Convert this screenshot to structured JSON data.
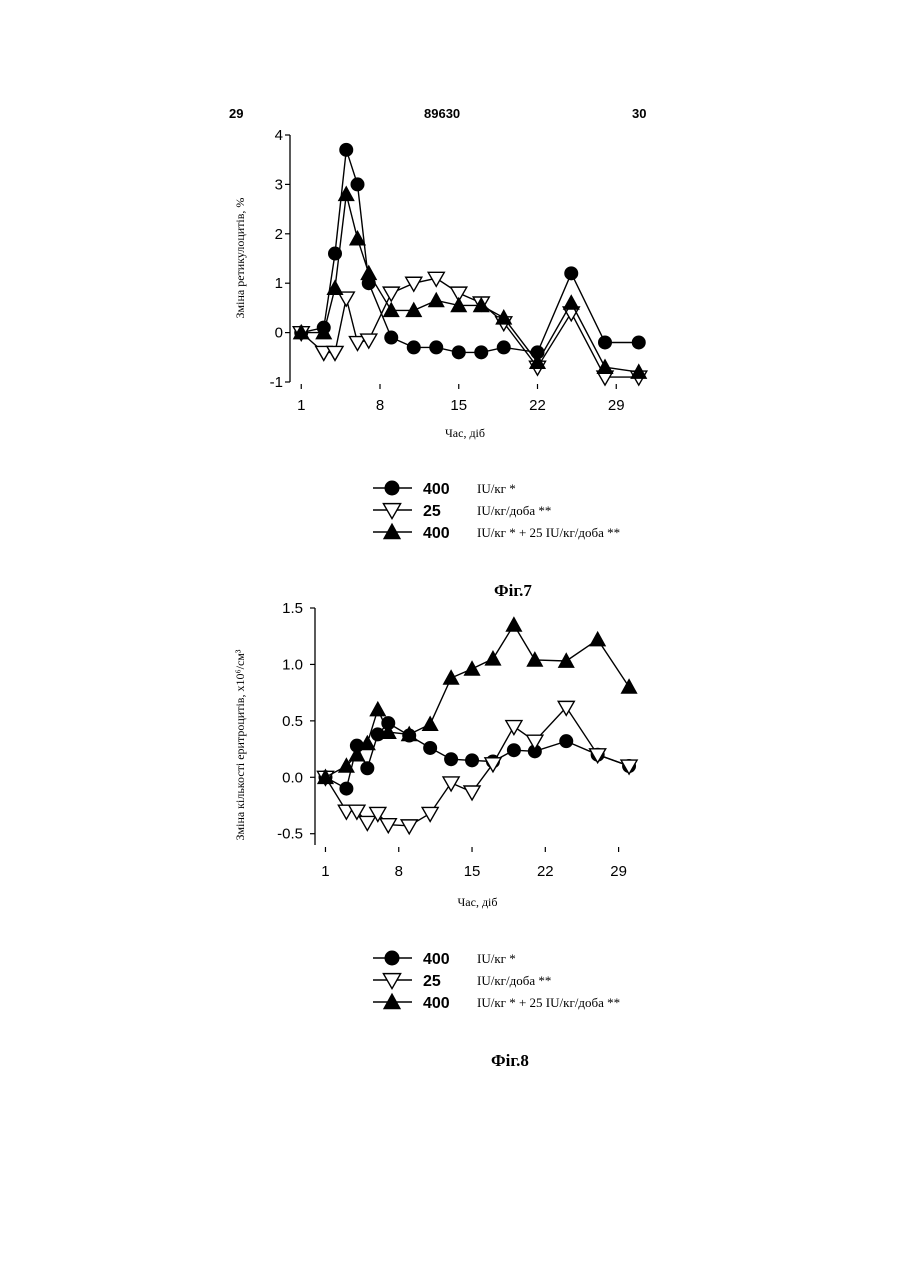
{
  "header": {
    "left": "29",
    "center": "89630",
    "right": "30"
  },
  "legend_rows": [
    {
      "marker": "circle",
      "number": "400",
      "text": "IU/кг *"
    },
    {
      "marker": "triangle-down-open",
      "number": "25",
      "text": "IU/кг/доба **"
    },
    {
      "marker": "triangle-up-filled",
      "number": "400",
      "text": "IU/кг * + 25 IU/кг/доба **"
    }
  ],
  "chart_data": [
    {
      "type": "line",
      "caption": "Фіг.7",
      "xlabel": "Час, діб",
      "ylabel": "Зміна ретикулоцитів, %",
      "xlim": [
        0,
        32
      ],
      "ylim": [
        -1,
        4
      ],
      "xticks": [
        1,
        8,
        15,
        22,
        29
      ],
      "yticks": [
        -1,
        0,
        1,
        2,
        3,
        4
      ],
      "ytick_labels": [
        "-1",
        "0",
        "1",
        "2",
        "3",
        "4"
      ],
      "series": [
        {
          "marker": "circle",
          "points": [
            [
              1,
              0
            ],
            [
              3,
              0.1
            ],
            [
              4,
              1.6
            ],
            [
              5,
              3.7
            ],
            [
              6,
              3.0
            ],
            [
              7,
              1.0
            ],
            [
              9,
              -0.1
            ],
            [
              11,
              -0.3
            ],
            [
              13,
              -0.3
            ],
            [
              15,
              -0.4
            ],
            [
              17,
              -0.4
            ],
            [
              19,
              -0.3
            ],
            [
              22,
              -0.4
            ],
            [
              25,
              1.2
            ],
            [
              28,
              -0.2
            ],
            [
              31,
              -0.2
            ]
          ]
        },
        {
          "marker": "triangle-down-open",
          "points": [
            [
              1,
              0
            ],
            [
              3,
              -0.4
            ],
            [
              4,
              -0.4
            ],
            [
              5,
              0.7
            ],
            [
              6,
              -0.2
            ],
            [
              7,
              -0.15
            ],
            [
              9,
              0.8
            ],
            [
              11,
              1.0
            ],
            [
              13,
              1.1
            ],
            [
              15,
              0.8
            ],
            [
              17,
              0.6
            ],
            [
              19,
              0.2
            ],
            [
              22,
              -0.7
            ],
            [
              25,
              0.4
            ],
            [
              28,
              -0.9
            ],
            [
              31,
              -0.9
            ]
          ]
        },
        {
          "marker": "triangle-up-filled",
          "points": [
            [
              1,
              0
            ],
            [
              3,
              0
            ],
            [
              4,
              0.9
            ],
            [
              5,
              2.8
            ],
            [
              6,
              1.9
            ],
            [
              7,
              1.2
            ],
            [
              9,
              0.45
            ],
            [
              11,
              0.45
            ],
            [
              13,
              0.65
            ],
            [
              15,
              0.55
            ],
            [
              17,
              0.55
            ],
            [
              19,
              0.3
            ],
            [
              22,
              -0.6
            ],
            [
              25,
              0.6
            ],
            [
              28,
              -0.7
            ],
            [
              31,
              -0.8
            ]
          ]
        }
      ]
    },
    {
      "type": "line",
      "caption": "Фіг.8",
      "xlabel": "Час, діб",
      "ylabel": "Зміна кількості еритроцитів, x10⁶/см³",
      "xlim": [
        0,
        32
      ],
      "ylim": [
        -0.6,
        1.5
      ],
      "xticks": [
        1,
        8,
        15,
        22,
        29
      ],
      "yticks": [
        -0.5,
        0.0,
        0.5,
        1.0,
        1.5
      ],
      "ytick_labels": [
        "-0.5",
        "0.0",
        "0.5",
        "1.0",
        "1.5"
      ],
      "series": [
        {
          "marker": "circle",
          "points": [
            [
              1,
              0
            ],
            [
              3,
              -0.1
            ],
            [
              4,
              0.28
            ],
            [
              5,
              0.08
            ],
            [
              6,
              0.38
            ],
            [
              7,
              0.48
            ],
            [
              9,
              0.37
            ],
            [
              11,
              0.26
            ],
            [
              13,
              0.16
            ],
            [
              15,
              0.15
            ],
            [
              17,
              0.14
            ],
            [
              19,
              0.24
            ],
            [
              21,
              0.23
            ],
            [
              24,
              0.32
            ],
            [
              27,
              0.2
            ],
            [
              30,
              0.1
            ]
          ]
        },
        {
          "marker": "triangle-down-open",
          "points": [
            [
              1,
              0
            ],
            [
              3,
              -0.3
            ],
            [
              4,
              -0.3
            ],
            [
              5,
              -0.4
            ],
            [
              6,
              -0.32
            ],
            [
              7,
              -0.42
            ],
            [
              9,
              -0.43
            ],
            [
              11,
              -0.32
            ],
            [
              13,
              -0.05
            ],
            [
              15,
              -0.13
            ],
            [
              17,
              0.12
            ],
            [
              19,
              0.45
            ],
            [
              21,
              0.32
            ],
            [
              24,
              0.62
            ],
            [
              27,
              0.2
            ],
            [
              30,
              0.1
            ]
          ]
        },
        {
          "marker": "triangle-up-filled",
          "points": [
            [
              1,
              0
            ],
            [
              3,
              0.1
            ],
            [
              4,
              0.2
            ],
            [
              5,
              0.3
            ],
            [
              6,
              0.6
            ],
            [
              7,
              0.4
            ],
            [
              9,
              0.38
            ],
            [
              11,
              0.47
            ],
            [
              13,
              0.88
            ],
            [
              15,
              0.96
            ],
            [
              17,
              1.05
            ],
            [
              19,
              1.35
            ],
            [
              21,
              1.04
            ],
            [
              24,
              1.03
            ],
            [
              27,
              1.22
            ],
            [
              30,
              0.8
            ]
          ]
        }
      ]
    }
  ]
}
